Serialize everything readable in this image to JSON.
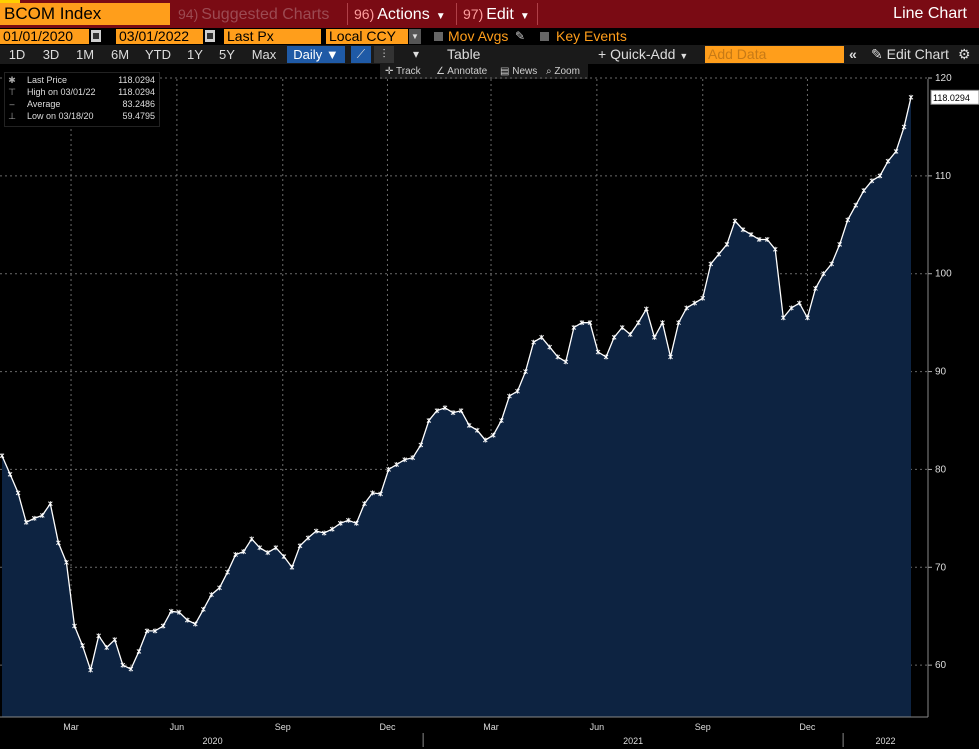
{
  "header": {
    "ticker": "BCOM Index",
    "suggested_num": "94)",
    "suggested_label": "Suggested Charts",
    "actions_num": "96)",
    "actions_label": "Actions",
    "edit_num": "97)",
    "edit_label": "Edit",
    "chart_type_label": "Line Chart"
  },
  "controls": {
    "start_date": "01/01/2020",
    "date_sep": "-",
    "end_date": "03/01/2022",
    "field": "Last Px",
    "currency": "Local CCY",
    "mov_avgs": "Mov Avgs",
    "key_events": "Key Events"
  },
  "toolbar": {
    "ranges": [
      "1D",
      "3D",
      "1M",
      "6M",
      "YTD",
      "1Y",
      "5Y",
      "Max"
    ],
    "period": "Daily",
    "table_label": "Table",
    "quick_add_label": "Quick-Add",
    "add_data_placeholder": "Add Data",
    "edit_chart_label": "Edit Chart"
  },
  "subtoolbar": {
    "track": "Track",
    "annotate": "Annotate",
    "news": "News",
    "zoom": "Zoom"
  },
  "legend": {
    "rows": [
      {
        "label": "Last Price",
        "value": "118.0294"
      },
      {
        "label": "High on 03/01/22",
        "value": "118.0294"
      },
      {
        "label": "Average",
        "value": "83.2486"
      },
      {
        "label": "Low on 03/18/20",
        "value": "59.4795"
      }
    ]
  },
  "chart_data": {
    "type": "area",
    "title": "",
    "xlabel": "",
    "ylabel": "",
    "ylim": [
      54.7,
      119.9
    ],
    "yticks": [
      60,
      70,
      80,
      90,
      100,
      110,
      120
    ],
    "x_month_labels": [
      "Mar",
      "Jun",
      "Sep",
      "Dec",
      "Mar",
      "Jun",
      "Sep",
      "Dec"
    ],
    "x_year_labels": [
      "2020",
      "2021",
      "2022"
    ],
    "last_value_label": "118.0294",
    "grid": true,
    "series": [
      {
        "name": "Last Price",
        "x": [
          "2020-01-01",
          "2020-01-08",
          "2020-01-15",
          "2020-01-22",
          "2020-01-29",
          "2020-02-05",
          "2020-02-12",
          "2020-02-19",
          "2020-02-26",
          "2020-03-04",
          "2020-03-11",
          "2020-03-18",
          "2020-03-25",
          "2020-04-01",
          "2020-04-08",
          "2020-04-15",
          "2020-04-22",
          "2020-04-29",
          "2020-05-06",
          "2020-05-13",
          "2020-05-20",
          "2020-05-27",
          "2020-06-03",
          "2020-06-10",
          "2020-06-17",
          "2020-06-24",
          "2020-07-01",
          "2020-07-08",
          "2020-07-15",
          "2020-07-22",
          "2020-07-29",
          "2020-08-05",
          "2020-08-12",
          "2020-08-19",
          "2020-08-26",
          "2020-09-02",
          "2020-09-09",
          "2020-09-16",
          "2020-09-23",
          "2020-09-30",
          "2020-10-07",
          "2020-10-14",
          "2020-10-21",
          "2020-10-28",
          "2020-11-04",
          "2020-11-11",
          "2020-11-18",
          "2020-11-25",
          "2020-12-02",
          "2020-12-09",
          "2020-12-16",
          "2020-12-23",
          "2020-12-30",
          "2021-01-06",
          "2021-01-13",
          "2021-01-20",
          "2021-01-27",
          "2021-02-03",
          "2021-02-10",
          "2021-02-17",
          "2021-02-24",
          "2021-03-03",
          "2021-03-10",
          "2021-03-17",
          "2021-03-24",
          "2021-03-31",
          "2021-04-07",
          "2021-04-14",
          "2021-04-21",
          "2021-04-28",
          "2021-05-05",
          "2021-05-12",
          "2021-05-19",
          "2021-05-26",
          "2021-06-02",
          "2021-06-09",
          "2021-06-16",
          "2021-06-23",
          "2021-06-30",
          "2021-07-07",
          "2021-07-14",
          "2021-07-21",
          "2021-07-28",
          "2021-08-04",
          "2021-08-11",
          "2021-08-18",
          "2021-08-25",
          "2021-09-01",
          "2021-09-08",
          "2021-09-15",
          "2021-09-22",
          "2021-09-29",
          "2021-10-06",
          "2021-10-13",
          "2021-10-20",
          "2021-10-27",
          "2021-11-03",
          "2021-11-10",
          "2021-11-17",
          "2021-11-24",
          "2021-12-01",
          "2021-12-08",
          "2021-12-15",
          "2021-12-22",
          "2021-12-29",
          "2022-01-05",
          "2022-01-12",
          "2022-01-19",
          "2022-01-26",
          "2022-02-02",
          "2022-02-09",
          "2022-02-16",
          "2022-02-23",
          "2022-03-01"
        ],
        "values": [
          81.4,
          79.5,
          77.6,
          74.6,
          75.0,
          75.3,
          76.5,
          72.5,
          70.5,
          64.0,
          62.0,
          59.5,
          63.0,
          61.8,
          62.6,
          60.0,
          59.6,
          61.4,
          63.5,
          63.5,
          64.0,
          65.5,
          65.4,
          64.6,
          64.2,
          65.7,
          67.2,
          67.9,
          69.5,
          71.3,
          71.6,
          72.9,
          72.0,
          71.5,
          72.0,
          71.1,
          70.0,
          72.2,
          73.0,
          73.7,
          73.5,
          73.9,
          74.5,
          74.8,
          74.5,
          76.5,
          77.6,
          77.5,
          80.0,
          80.5,
          81.0,
          81.2,
          82.5,
          85.0,
          86.0,
          86.3,
          85.8,
          86.0,
          84.5,
          84.0,
          83.0,
          83.5,
          85.0,
          87.5,
          88.0,
          90.0,
          93.0,
          93.5,
          92.5,
          91.5,
          91.0,
          94.5,
          95.0,
          95.0,
          92.0,
          91.5,
          93.5,
          94.5,
          93.8,
          95.0,
          96.4,
          93.5,
          95.0,
          91.5,
          95.0,
          96.5,
          97.0,
          97.5,
          101.0,
          102.0,
          103.0,
          105.4,
          104.5,
          104.0,
          103.5,
          103.5,
          102.5,
          95.5,
          96.5,
          97.0,
          95.5,
          98.5,
          100.0,
          101.0,
          103.0,
          105.5,
          107.0,
          108.5,
          109.5,
          110.0,
          111.5,
          112.5,
          115.0,
          118.0294
        ]
      }
    ]
  }
}
